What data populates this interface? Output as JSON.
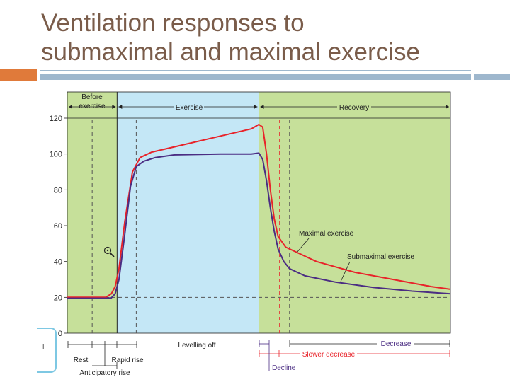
{
  "slide": {
    "title_line1": "Ventilation responses to",
    "title_line2": "submaximal and maximal exercise"
  },
  "colors": {
    "title": "#7a5c4a",
    "accent_orange": "#e07a3a",
    "accent_blue": "#9eb7cd",
    "rest_bg": "#c6e09a",
    "exercise_bg": "#c4e7f6",
    "maximal": "#e8232a",
    "submaximal": "#4b2d83"
  },
  "callout": {
    "text": "l"
  },
  "chart_data": {
    "type": "line",
    "title": "",
    "xlabel": "",
    "ylabel": "",
    "x_range": [
      0,
      100
    ],
    "ylim": [
      0,
      120
    ],
    "yticks": [
      0,
      20,
      40,
      60,
      80,
      100,
      120
    ],
    "grid": false,
    "baseline_value": 20,
    "phases": [
      {
        "label": "Before exercise",
        "start": 0,
        "end": 13
      },
      {
        "label": "Exercise",
        "start": 13,
        "end": 50
      },
      {
        "label": "Recovery",
        "start": 50,
        "end": 100
      }
    ],
    "phase_header_before_line1": "Before",
    "phase_header_before_line2": "exercise",
    "marker_lines": [
      6.5,
      18,
      55.4,
      58
    ],
    "series": [
      {
        "name": "Maximal exercise",
        "color": "#e8232a",
        "points": [
          [
            0,
            20
          ],
          [
            8,
            20
          ],
          [
            10,
            20
          ],
          [
            11.5,
            22
          ],
          [
            12.5,
            26
          ],
          [
            13.5,
            36
          ],
          [
            15,
            62
          ],
          [
            17,
            90
          ],
          [
            19,
            98
          ],
          [
            22,
            101
          ],
          [
            30,
            105
          ],
          [
            40,
            110
          ],
          [
            48,
            114
          ],
          [
            50,
            116.5
          ],
          [
            51,
            115
          ],
          [
            52,
            100
          ],
          [
            53,
            80
          ],
          [
            54,
            64
          ],
          [
            55,
            54
          ],
          [
            57,
            48
          ],
          [
            60,
            45
          ],
          [
            65,
            40
          ],
          [
            75,
            34
          ],
          [
            85,
            30
          ],
          [
            95,
            26
          ],
          [
            100,
            24.5
          ]
        ]
      },
      {
        "name": "Submaximal exercise",
        "color": "#4b2d83",
        "points": [
          [
            0,
            19.5
          ],
          [
            10,
            19.5
          ],
          [
            11.5,
            19.7
          ],
          [
            12.5,
            22
          ],
          [
            13.5,
            30
          ],
          [
            15,
            55
          ],
          [
            16.5,
            82
          ],
          [
            18,
            93
          ],
          [
            20,
            96
          ],
          [
            23,
            98
          ],
          [
            28,
            99.5
          ],
          [
            40,
            100
          ],
          [
            48,
            100
          ],
          [
            50,
            100.5
          ],
          [
            51,
            97
          ],
          [
            52,
            85
          ],
          [
            53,
            70
          ],
          [
            54,
            57
          ],
          [
            55,
            47
          ],
          [
            56.5,
            40
          ],
          [
            58,
            36
          ],
          [
            62,
            32
          ],
          [
            70,
            28.5
          ],
          [
            80,
            25.5
          ],
          [
            90,
            23.5
          ],
          [
            100,
            22
          ]
        ]
      }
    ],
    "annotations": [
      {
        "label": "Maximal exercise",
        "at": [
          61,
          55
        ]
      },
      {
        "label": "Submaximal exercise",
        "at": [
          73,
          42
        ]
      }
    ],
    "bottom_labels": {
      "rest": "Rest",
      "rapid_rise": "Rapid rise",
      "anticipatory_rise": "Anticipatory rise",
      "levelling_off": "Levelling off",
      "decrease": "Decrease",
      "slower_decrease": "Slower decrease",
      "decline": "Decline"
    }
  }
}
